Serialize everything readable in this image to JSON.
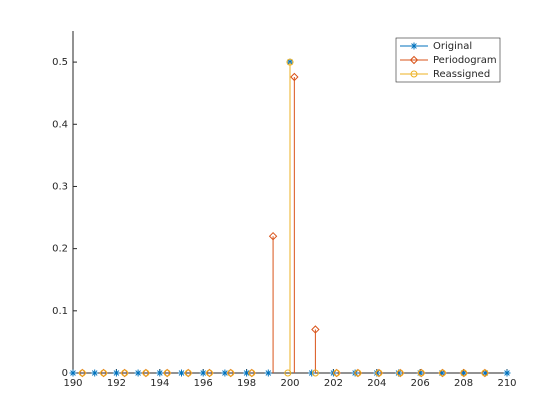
{
  "chart_data": {
    "type": "stem",
    "xlim": [
      190,
      210
    ],
    "xticks": [
      190,
      192,
      194,
      196,
      198,
      200,
      202,
      204,
      206,
      208,
      210
    ],
    "ylim": [
      0,
      0.55
    ],
    "yticks": [
      0,
      0.1,
      0.2,
      0.3,
      0.4,
      0.5
    ],
    "legend": "northeast",
    "series": [
      {
        "name": "Original",
        "color": "#0072bd",
        "marker": "asterisk",
        "x": [
          190,
          191,
          192,
          193,
          194,
          195,
          196,
          197,
          198,
          199,
          200,
          201,
          202,
          203,
          204,
          205,
          206,
          207,
          208,
          209,
          210
        ],
        "values": [
          0,
          0,
          0,
          0,
          0,
          0,
          0,
          0,
          0,
          0,
          0.5,
          0,
          0,
          0,
          0,
          0,
          0,
          0,
          0,
          0,
          0
        ]
      },
      {
        "name": "Periodogram",
        "color": "#d95319",
        "marker": "diamond",
        "x": [
          190.43,
          191.41,
          192.38,
          193.36,
          194.34,
          195.31,
          196.29,
          197.27,
          198.24,
          199.22,
          200.2,
          201.17,
          202.15,
          203.13,
          204.1,
          205.08,
          206.05,
          207.03,
          208.01,
          208.98
        ],
        "values": [
          0,
          0,
          0,
          0,
          0,
          0,
          0,
          0,
          0,
          0.22,
          0.476,
          0.07,
          0,
          0,
          0,
          0,
          0,
          0,
          0,
          0
        ]
      },
      {
        "name": "Reassigned",
        "color": "#edb120",
        "marker": "circle",
        "x": [
          190.43,
          191.41,
          192.38,
          193.36,
          194.34,
          195.31,
          196.29,
          197.27,
          198.24,
          199.9,
          200,
          201.17,
          202.15,
          203.13,
          204.1,
          205.08,
          206.05,
          207.03,
          208.01,
          208.98
        ],
        "values": [
          0,
          0,
          0,
          0,
          0,
          0,
          0,
          0,
          0,
          0,
          0.5,
          0,
          0,
          0,
          0,
          0,
          0,
          0,
          0,
          0
        ]
      }
    ]
  }
}
